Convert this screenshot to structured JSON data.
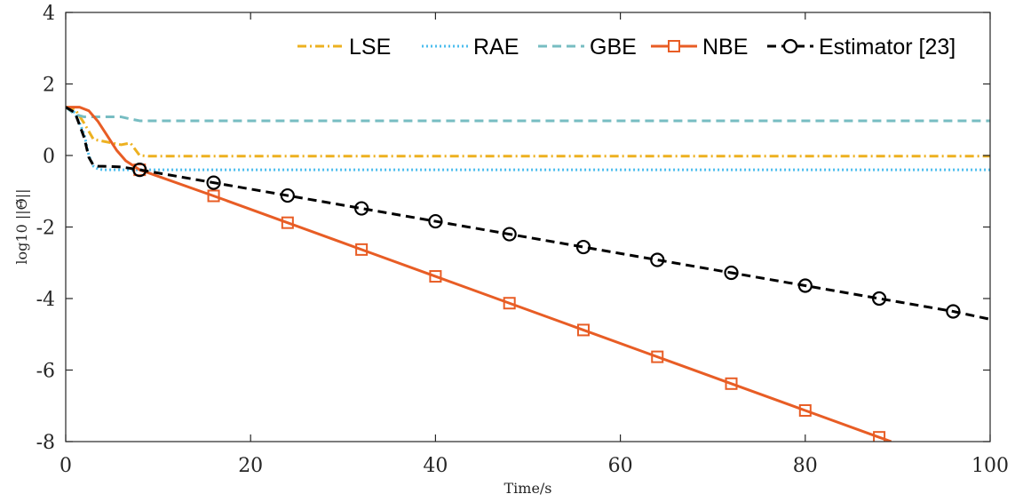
{
  "chart_data": {
    "type": "line",
    "title": "",
    "xlabel": "Time/s",
    "ylabel": "log10 ||Θ̃||",
    "xlim": [
      0,
      100
    ],
    "ylim": [
      -8,
      4
    ],
    "x_ticks": [
      "0",
      "20",
      "40",
      "60",
      "80",
      "100"
    ],
    "y_ticks": [
      "4",
      "2",
      "0",
      "-2",
      "-4",
      "-6",
      "-8"
    ],
    "grid": false,
    "legend_position": "top-right",
    "legend_orientation": "horizontal",
    "series": [
      {
        "name": "LSE",
        "color": "#EDB120",
        "dash": "dash-dot",
        "marker": "none",
        "x": [
          0,
          1,
          2,
          3,
          4,
          5,
          6,
          7,
          8,
          9,
          10,
          100
        ],
        "y": [
          1.35,
          1.3,
          0.9,
          0.45,
          0.4,
          0.35,
          0.3,
          0.35,
          0.0,
          -0.02,
          -0.02,
          -0.02
        ]
      },
      {
        "name": "RAE",
        "color": "#4DBEEE",
        "dash": "dotted",
        "marker": "none",
        "x": [
          0,
          1,
          2,
          2.5,
          3,
          3.5,
          4,
          100
        ],
        "y": [
          1.35,
          1.2,
          0.6,
          0.0,
          -0.3,
          -0.38,
          -0.4,
          -0.4
        ]
      },
      {
        "name": "GBE",
        "color": "#77BDC2",
        "dash": "dashed",
        "marker": "none",
        "x": [
          0,
          1,
          2,
          6,
          7,
          8,
          100
        ],
        "y": [
          1.35,
          1.15,
          1.08,
          1.08,
          1.02,
          0.97,
          0.97
        ]
      },
      {
        "name": "NBE",
        "color": "#E85D25",
        "dash": "solid",
        "marker": "square",
        "x": [
          0,
          1.5,
          2.5,
          3.5,
          4.5,
          5.5,
          6.5,
          8,
          16,
          24,
          32,
          40,
          48,
          56,
          64,
          72,
          80,
          88,
          89.3
        ],
        "y": [
          1.35,
          1.35,
          1.25,
          0.95,
          0.55,
          0.15,
          -0.15,
          -0.4,
          -1.13,
          -1.88,
          -2.63,
          -3.38,
          -4.13,
          -4.88,
          -5.63,
          -6.38,
          -7.13,
          -7.88,
          -8.0
        ]
      },
      {
        "name": "Estimator [23]",
        "color": "#000000",
        "dash": "dashed",
        "marker": "circle",
        "x": [
          0,
          1,
          2,
          2.5,
          3,
          3.5,
          4,
          6,
          8,
          16,
          24,
          32,
          40,
          48,
          56,
          64,
          72,
          80,
          88,
          96,
          100
        ],
        "y": [
          1.35,
          1.2,
          0.5,
          -0.05,
          -0.28,
          -0.3,
          -0.3,
          -0.32,
          -0.4,
          -0.76,
          -1.12,
          -1.48,
          -1.84,
          -2.2,
          -2.56,
          -2.92,
          -3.28,
          -3.64,
          -4.0,
          -4.36,
          -4.58
        ]
      }
    ],
    "marker_x": {
      "NBE": [
        8,
        16,
        24,
        32,
        40,
        48,
        56,
        64,
        72,
        80,
        88
      ],
      "Estimator [23]": [
        8,
        16,
        24,
        32,
        40,
        48,
        56,
        64,
        72,
        80,
        88,
        96
      ]
    }
  }
}
